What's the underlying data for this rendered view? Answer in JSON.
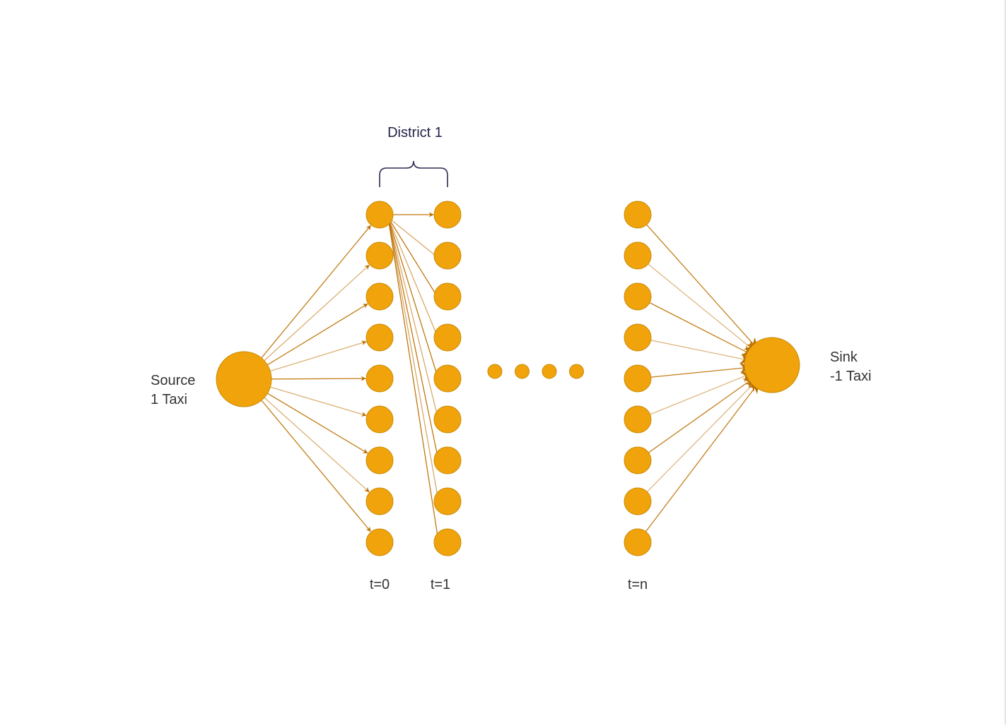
{
  "diagram": {
    "group_label": "District 1",
    "source": {
      "name": "Source",
      "supply": "1 Taxi"
    },
    "sink": {
      "name": "Sink",
      "demand": "-1 Taxi"
    },
    "time_labels": [
      "t=0",
      "t=1",
      "t=n"
    ],
    "nodes_per_layer": 9,
    "ellipsis_dots": 4
  },
  "colors": {
    "node_fill": "#f0a30a",
    "node_stroke": "#c98a08",
    "edge": "#bd7000",
    "brace": "#2b2b52",
    "text": "#333333"
  }
}
